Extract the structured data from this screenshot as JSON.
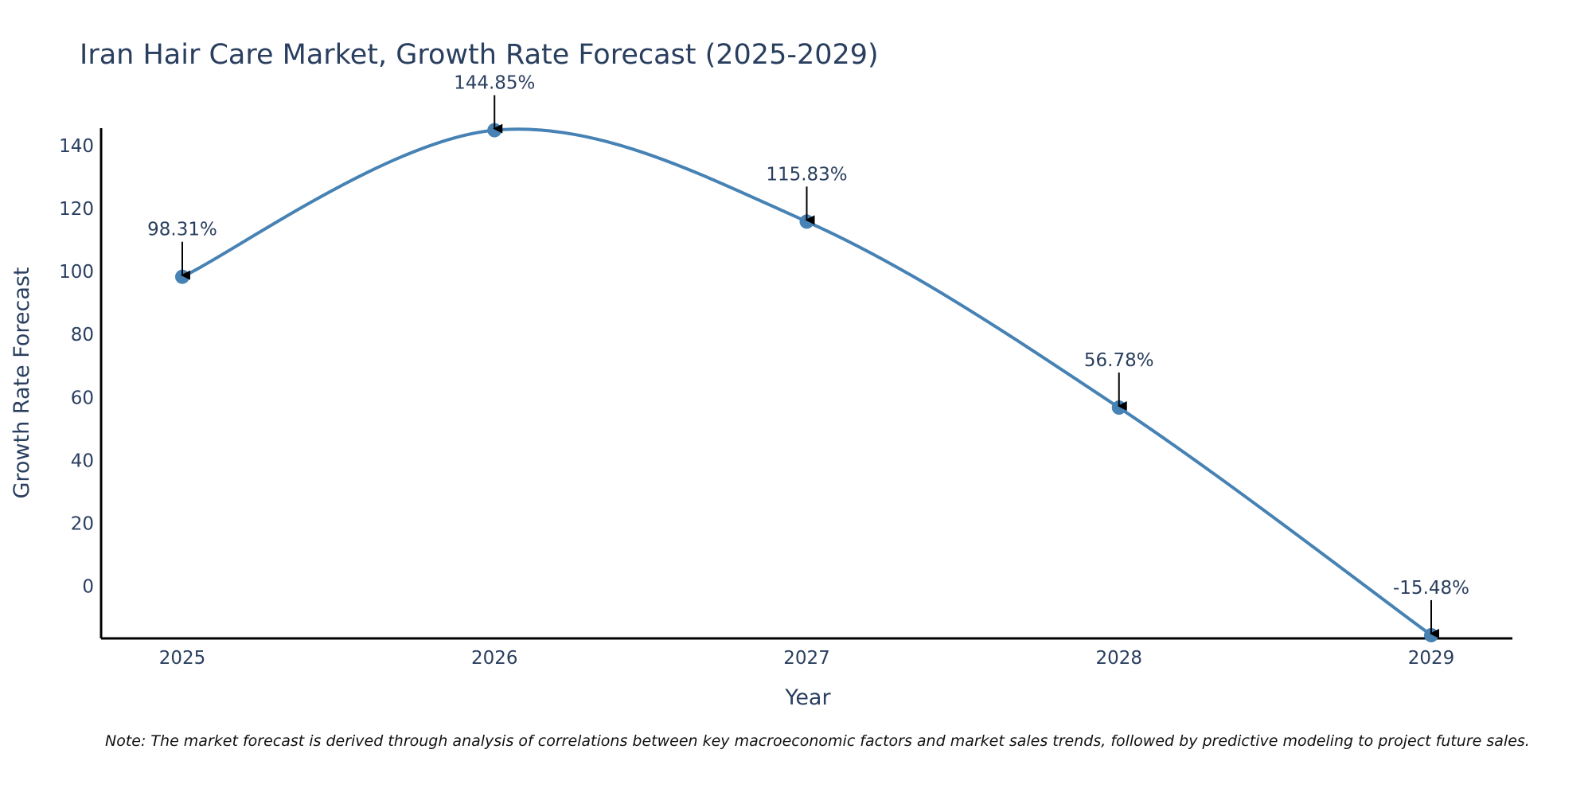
{
  "colors": {
    "line": "#4682b4",
    "text": "#2a3f5f",
    "axis": "#000000",
    "arrow": "#000000"
  },
  "chart_data": {
    "type": "line",
    "title": "Iran Hair Care Market, Growth Rate Forecast (2025-2029)",
    "xlabel": "Year",
    "ylabel": "Growth Rate Forecast",
    "categories": [
      "2025",
      "2026",
      "2027",
      "2028",
      "2029"
    ],
    "values": [
      98.31,
      144.85,
      115.83,
      56.78,
      -15.48
    ],
    "data_labels": [
      "98.31%",
      "144.85%",
      "115.83%",
      "56.78%",
      "-15.48%"
    ],
    "y_ticks": [
      0,
      20,
      40,
      60,
      80,
      100,
      120,
      140
    ],
    "y_tick_labels": [
      "0",
      "20",
      "40",
      "60",
      "80",
      "100",
      "120",
      "140"
    ],
    "ylim": [
      -16.5,
      145.5
    ],
    "grid": false,
    "smooth": true,
    "markers": true
  },
  "note": "Note: The market forecast is derived through analysis of correlations between key macroeconomic factors and market sales trends, followed by predictive modeling to project future sales."
}
